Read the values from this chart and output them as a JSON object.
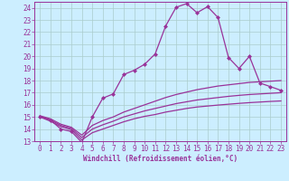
{
  "background_color": "#cceeff",
  "grid_color": "#aacccc",
  "line_color": "#993399",
  "marker_color": "#993399",
  "xlabel": "Windchill (Refroidissement éolien,°C)",
  "xlim": [
    -0.5,
    23.5
  ],
  "ylim": [
    13,
    24.5
  ],
  "xticks": [
    0,
    1,
    2,
    3,
    4,
    5,
    6,
    7,
    8,
    9,
    10,
    11,
    12,
    13,
    14,
    15,
    16,
    17,
    18,
    19,
    20,
    21,
    22,
    23
  ],
  "yticks": [
    13,
    14,
    15,
    16,
    17,
    18,
    19,
    20,
    21,
    22,
    23,
    24
  ],
  "series": [
    {
      "x": [
        0,
        1,
        2,
        3,
        4,
        5,
        6,
        7,
        8,
        9,
        10,
        11,
        12,
        13,
        14,
        15,
        16,
        17,
        18,
        19,
        20,
        21,
        22,
        23
      ],
      "y": [
        15.05,
        14.75,
        14.0,
        13.8,
        12.9,
        15.0,
        16.55,
        16.9,
        18.5,
        18.85,
        19.35,
        20.2,
        22.5,
        24.05,
        24.35,
        23.6,
        24.1,
        23.2,
        19.9,
        19.0,
        20.0,
        17.8,
        17.5,
        17.2
      ],
      "marker": true
    },
    {
      "x": [
        0,
        1,
        2,
        3,
        4,
        5,
        6,
        7,
        8,
        9,
        10,
        11,
        12,
        13,
        14,
        15,
        16,
        17,
        18,
        19,
        20,
        21,
        22,
        23
      ],
      "y": [
        15.1,
        14.85,
        14.4,
        14.15,
        13.5,
        14.3,
        14.7,
        15.0,
        15.4,
        15.7,
        16.0,
        16.3,
        16.6,
        16.85,
        17.05,
        17.25,
        17.4,
        17.55,
        17.65,
        17.75,
        17.85,
        17.9,
        17.95,
        18.0
      ],
      "marker": false
    },
    {
      "x": [
        0,
        1,
        2,
        3,
        4,
        5,
        6,
        7,
        8,
        9,
        10,
        11,
        12,
        13,
        14,
        15,
        16,
        17,
        18,
        19,
        20,
        21,
        22,
        23
      ],
      "y": [
        15.05,
        14.75,
        14.3,
        14.05,
        13.3,
        14.0,
        14.35,
        14.65,
        15.0,
        15.25,
        15.5,
        15.7,
        15.9,
        16.1,
        16.25,
        16.4,
        16.5,
        16.6,
        16.7,
        16.78,
        16.85,
        16.9,
        16.95,
        17.0
      ],
      "marker": false
    },
    {
      "x": [
        0,
        1,
        2,
        3,
        4,
        5,
        6,
        7,
        8,
        9,
        10,
        11,
        12,
        13,
        14,
        15,
        16,
        17,
        18,
        19,
        20,
        21,
        22,
        23
      ],
      "y": [
        15.0,
        14.65,
        14.2,
        13.95,
        13.1,
        13.7,
        14.0,
        14.3,
        14.6,
        14.85,
        15.05,
        15.2,
        15.4,
        15.55,
        15.7,
        15.82,
        15.9,
        15.98,
        16.05,
        16.12,
        16.18,
        16.23,
        16.28,
        16.32
      ],
      "marker": false
    }
  ]
}
